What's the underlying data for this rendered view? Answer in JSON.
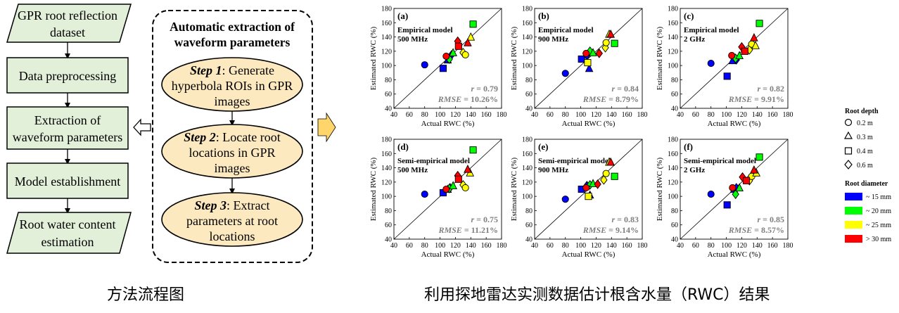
{
  "flowchart": {
    "steps": [
      {
        "label_lines": [
          "GPR root reflection",
          "dataset"
        ],
        "shape": "parallelogram"
      },
      {
        "label_lines": [
          "Data preprocessing"
        ],
        "shape": "rect"
      },
      {
        "label_lines": [
          "Extraction of",
          "waveform parameters"
        ],
        "shape": "rect"
      },
      {
        "label_lines": [
          "Model establishment"
        ],
        "shape": "rect"
      },
      {
        "label_lines": [
          "Root water content",
          "estimation"
        ],
        "shape": "parallelogram"
      }
    ],
    "fill_color": "#E2EFD9"
  },
  "extraction_panel": {
    "title_lines": [
      "Automatic extraction of",
      "waveform parameters"
    ],
    "steps": [
      {
        "step": "Step 1",
        "text_lines": [
          ": Generate",
          "hyperbola ROIs in GPR",
          "images"
        ]
      },
      {
        "step": "Step 2",
        "text_lines": [
          ": Locate root",
          "locations in GPR",
          "images"
        ]
      },
      {
        "step": "Step 3",
        "text_lines": [
          ": Extract",
          "parameters at root",
          "locations"
        ]
      }
    ],
    "ellipse_color": "#FDE9C0"
  },
  "arrow_color": "#FDD56A",
  "charts": {
    "axis_ticks": [
      "40",
      "60",
      "80",
      "100",
      "120",
      "140",
      "160",
      "180"
    ],
    "xlabel": "Actual RWC (%)",
    "ylabel": "Estimated RWC (%)",
    "r_prefix": "r",
    "rmse_prefix": "RMSE",
    "panels": [
      {
        "id": "(a)",
        "model_lines": [
          "Empirical model",
          "500 MHz"
        ],
        "r": "= 0.79",
        "rmse": "= 10.26%"
      },
      {
        "id": "(b)",
        "model_lines": [
          "Empirical  model",
          "900 MHz"
        ],
        "r": "= 0.84",
        "rmse": "= 8.79%"
      },
      {
        "id": "(c)",
        "model_lines": [
          "Empirical model",
          "2 GHz"
        ],
        "r": "= 0.82",
        "rmse": "= 9.91%"
      },
      {
        "id": "(d)",
        "model_lines": [
          "Semi-empirical model",
          "500 MHz"
        ],
        "r": "= 0.75",
        "rmse": "= 11.21%"
      },
      {
        "id": "(e)",
        "model_lines": [
          "Semi-empirical model",
          "900 MHz"
        ],
        "r": "= 0.83",
        "rmse": "= 9.14%"
      },
      {
        "id": "(f)",
        "model_lines": [
          "Semi-empirical model",
          "2 GHz"
        ],
        "r": "= 0.85",
        "rmse": "= 8.57%"
      }
    ]
  },
  "legend": {
    "depth_title": "Root depth",
    "depth_items": [
      {
        "shape": "circle",
        "label": "0.2 m"
      },
      {
        "shape": "triangle",
        "label": "0.3 m"
      },
      {
        "shape": "square",
        "label": "0.4 m"
      },
      {
        "shape": "diamond",
        "label": "0.6 m"
      }
    ],
    "diameter_title": "Root diameter",
    "diameter_items": [
      {
        "color": "#0000FF",
        "label": "~ 15 mm"
      },
      {
        "color": "#00FF00",
        "label": "~ 20 mm"
      },
      {
        "color": "#FFFF00",
        "label": "~ 25 mm"
      },
      {
        "color": "#FF0000",
        "label": "> 30 mm"
      }
    ]
  },
  "captions": {
    "left": "方法流程图",
    "right": "利用探地雷达实测数据估计根含水量（RWC）结果"
  },
  "chart_data": [
    {
      "type": "scatter",
      "title": "(a)",
      "xlabel": "Actual RWC (%)",
      "ylabel": "Estimated RWC (%)",
      "xlim": [
        40,
        180
      ],
      "ylim": [
        40,
        180
      ],
      "grid": false,
      "points": [
        {
          "x": 80,
          "y": 101,
          "c": "#0000FF",
          "m": "circle"
        },
        {
          "x": 104,
          "y": 96,
          "c": "#0000FF",
          "m": "square"
        },
        {
          "x": 110,
          "y": 108,
          "c": "#0000FF",
          "m": "triangle"
        },
        {
          "x": 115,
          "y": 115,
          "c": "#0000FF",
          "m": "diamond"
        },
        {
          "x": 112,
          "y": 109,
          "c": "#00FF00",
          "m": "diamond"
        },
        {
          "x": 117,
          "y": 118,
          "c": "#00FF00",
          "m": "triangle"
        },
        {
          "x": 143,
          "y": 158,
          "c": "#00FF00",
          "m": "square"
        },
        {
          "x": 130,
          "y": 118,
          "c": "#FFFF00",
          "m": "diamond"
        },
        {
          "x": 133,
          "y": 115,
          "c": "#FFFF00",
          "m": "circle"
        },
        {
          "x": 140,
          "y": 140,
          "c": "#FFFF00",
          "m": "triangle"
        },
        {
          "x": 108,
          "y": 113,
          "c": "#FF0000",
          "m": "circle"
        },
        {
          "x": 123,
          "y": 134,
          "c": "#FF0000",
          "m": "diamond"
        },
        {
          "x": 124,
          "y": 127,
          "c": "#FF0000",
          "m": "square"
        },
        {
          "x": 136,
          "y": 132,
          "c": "#FF0000",
          "m": "triangle"
        }
      ]
    },
    {
      "type": "scatter",
      "title": "(b)",
      "xlabel": "Actual RWC (%)",
      "ylabel": "Estimated RWC (%)",
      "xlim": [
        40,
        180
      ],
      "ylim": [
        40,
        180
      ],
      "grid": false,
      "points": [
        {
          "x": 80,
          "y": 89,
          "c": "#0000FF",
          "m": "circle"
        },
        {
          "x": 101,
          "y": 109,
          "c": "#0000FF",
          "m": "square"
        },
        {
          "x": 111,
          "y": 96,
          "c": "#0000FF",
          "m": "triangle"
        },
        {
          "x": 108,
          "y": 114,
          "c": "#0000FF",
          "m": "diamond"
        },
        {
          "x": 112,
          "y": 120,
          "c": "#00FF00",
          "m": "diamond"
        },
        {
          "x": 116,
          "y": 118,
          "c": "#00FF00",
          "m": "triangle"
        },
        {
          "x": 144,
          "y": 131,
          "c": "#00FF00",
          "m": "square"
        },
        {
          "x": 109,
          "y": 104,
          "c": "#FFFF00",
          "m": "square"
        },
        {
          "x": 132,
          "y": 125,
          "c": "#FFFF00",
          "m": "diamond"
        },
        {
          "x": 133,
          "y": 132,
          "c": "#FFFF00",
          "m": "circle"
        },
        {
          "x": 137,
          "y": 144,
          "c": "#FFFF00",
          "m": "triangle"
        },
        {
          "x": 107,
          "y": 117,
          "c": "#FF0000",
          "m": "circle"
        },
        {
          "x": 124,
          "y": 117,
          "c": "#FF0000",
          "m": "diamond"
        },
        {
          "x": 139,
          "y": 144,
          "c": "#FF0000",
          "m": "triangle"
        }
      ]
    },
    {
      "type": "scatter",
      "title": "(c)",
      "xlabel": "Actual RWC (%)",
      "ylabel": "Estimated RWC (%)",
      "xlim": [
        40,
        180
      ],
      "ylim": [
        40,
        180
      ],
      "grid": false,
      "points": [
        {
          "x": 80,
          "y": 103,
          "c": "#0000FF",
          "m": "circle"
        },
        {
          "x": 101,
          "y": 85,
          "c": "#0000FF",
          "m": "square"
        },
        {
          "x": 108,
          "y": 107,
          "c": "#0000FF",
          "m": "triangle"
        },
        {
          "x": 113,
          "y": 108,
          "c": "#0000FF",
          "m": "diamond"
        },
        {
          "x": 112,
          "y": 110,
          "c": "#00FF00",
          "m": "diamond"
        },
        {
          "x": 117,
          "y": 114,
          "c": "#00FF00",
          "m": "triangle"
        },
        {
          "x": 143,
          "y": 159,
          "c": "#00FF00",
          "m": "square"
        },
        {
          "x": 130,
          "y": 122,
          "c": "#FFFF00",
          "m": "diamond"
        },
        {
          "x": 133,
          "y": 130,
          "c": "#FFFF00",
          "m": "circle"
        },
        {
          "x": 138,
          "y": 128,
          "c": "#FFFF00",
          "m": "triangle"
        },
        {
          "x": 107,
          "y": 114,
          "c": "#FF0000",
          "m": "circle"
        },
        {
          "x": 120,
          "y": 126,
          "c": "#FF0000",
          "m": "diamond"
        },
        {
          "x": 124,
          "y": 120,
          "c": "#FF0000",
          "m": "square"
        },
        {
          "x": 136,
          "y": 139,
          "c": "#FF0000",
          "m": "triangle"
        }
      ]
    },
    {
      "type": "scatter",
      "title": "(d)",
      "xlabel": "Actual RWC (%)",
      "ylabel": "Estimated RWC (%)",
      "xlim": [
        40,
        180
      ],
      "ylim": [
        40,
        180
      ],
      "grid": false,
      "points": [
        {
          "x": 80,
          "y": 103,
          "c": "#0000FF",
          "m": "circle"
        },
        {
          "x": 104,
          "y": 105,
          "c": "#0000FF",
          "m": "square"
        },
        {
          "x": 110,
          "y": 110,
          "c": "#0000FF",
          "m": "triangle"
        },
        {
          "x": 113,
          "y": 112,
          "c": "#0000FF",
          "m": "diamond"
        },
        {
          "x": 112,
          "y": 111,
          "c": "#00FF00",
          "m": "diamond"
        },
        {
          "x": 117,
          "y": 115,
          "c": "#00FF00",
          "m": "triangle"
        },
        {
          "x": 143,
          "y": 165,
          "c": "#00FF00",
          "m": "square"
        },
        {
          "x": 130,
          "y": 116,
          "c": "#FFFF00",
          "m": "diamond"
        },
        {
          "x": 133,
          "y": 112,
          "c": "#FFFF00",
          "m": "circle"
        },
        {
          "x": 139,
          "y": 133,
          "c": "#FFFF00",
          "m": "triangle"
        },
        {
          "x": 108,
          "y": 110,
          "c": "#FF0000",
          "m": "circle"
        },
        {
          "x": 123,
          "y": 129,
          "c": "#FF0000",
          "m": "diamond"
        },
        {
          "x": 124,
          "y": 124,
          "c": "#FF0000",
          "m": "square"
        },
        {
          "x": 136,
          "y": 138,
          "c": "#FF0000",
          "m": "triangle"
        }
      ]
    },
    {
      "type": "scatter",
      "title": "(e)",
      "xlabel": "Actual RWC (%)",
      "ylabel": "Estimated RWC (%)",
      "xlim": [
        40,
        180
      ],
      "ylim": [
        40,
        180
      ],
      "grid": false,
      "points": [
        {
          "x": 80,
          "y": 96,
          "c": "#0000FF",
          "m": "circle"
        },
        {
          "x": 101,
          "y": 110,
          "c": "#0000FF",
          "m": "square"
        },
        {
          "x": 112,
          "y": 102,
          "c": "#0000FF",
          "m": "triangle"
        },
        {
          "x": 108,
          "y": 115,
          "c": "#0000FF",
          "m": "diamond"
        },
        {
          "x": 112,
          "y": 116,
          "c": "#00FF00",
          "m": "diamond"
        },
        {
          "x": 116,
          "y": 118,
          "c": "#00FF00",
          "m": "triangle"
        },
        {
          "x": 144,
          "y": 128,
          "c": "#00FF00",
          "m": "square"
        },
        {
          "x": 110,
          "y": 100,
          "c": "#FFFF00",
          "m": "square"
        },
        {
          "x": 130,
          "y": 123,
          "c": "#FFFF00",
          "m": "diamond"
        },
        {
          "x": 133,
          "y": 132,
          "c": "#FFFF00",
          "m": "circle"
        },
        {
          "x": 137,
          "y": 148,
          "c": "#FFFF00",
          "m": "triangle"
        },
        {
          "x": 107,
          "y": 112,
          "c": "#FF0000",
          "m": "circle"
        },
        {
          "x": 122,
          "y": 117,
          "c": "#FF0000",
          "m": "diamond"
        },
        {
          "x": 139,
          "y": 148,
          "c": "#FF0000",
          "m": "triangle"
        }
      ]
    },
    {
      "type": "scatter",
      "title": "(f)",
      "xlabel": "Actual RWC (%)",
      "ylabel": "Estimated RWC (%)",
      "xlim": [
        40,
        180
      ],
      "ylim": [
        40,
        180
      ],
      "grid": false,
      "points": [
        {
          "x": 80,
          "y": 103,
          "c": "#0000FF",
          "m": "circle"
        },
        {
          "x": 101,
          "y": 88,
          "c": "#0000FF",
          "m": "square"
        },
        {
          "x": 110,
          "y": 110,
          "c": "#0000FF",
          "m": "triangle"
        },
        {
          "x": 113,
          "y": 112,
          "c": "#0000FF",
          "m": "diamond"
        },
        {
          "x": 112,
          "y": 103,
          "c": "#00FF00",
          "m": "diamond"
        },
        {
          "x": 117,
          "y": 112,
          "c": "#00FF00",
          "m": "triangle"
        },
        {
          "x": 143,
          "y": 155,
          "c": "#00FF00",
          "m": "square"
        },
        {
          "x": 130,
          "y": 122,
          "c": "#FFFF00",
          "m": "diamond"
        },
        {
          "x": 133,
          "y": 128,
          "c": "#FFFF00",
          "m": "circle"
        },
        {
          "x": 139,
          "y": 133,
          "c": "#FFFF00",
          "m": "triangle"
        },
        {
          "x": 108,
          "y": 112,
          "c": "#FF0000",
          "m": "circle"
        },
        {
          "x": 121,
          "y": 127,
          "c": "#FF0000",
          "m": "diamond"
        },
        {
          "x": 126,
          "y": 122,
          "c": "#FF0000",
          "m": "square"
        },
        {
          "x": 136,
          "y": 137,
          "c": "#FF0000",
          "m": "triangle"
        }
      ]
    }
  ]
}
